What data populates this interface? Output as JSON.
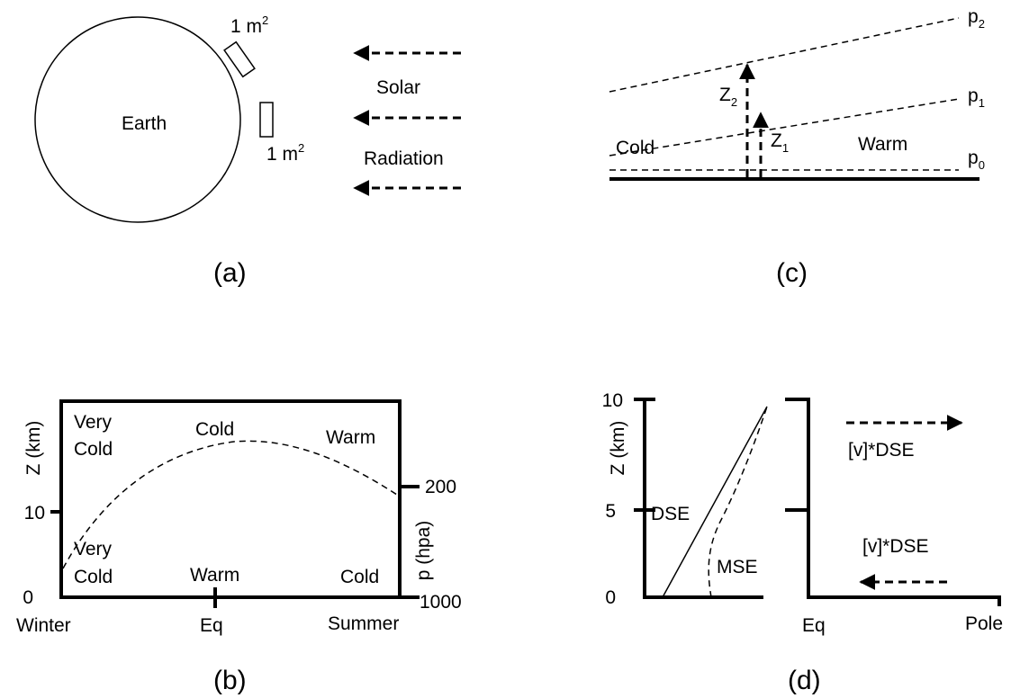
{
  "panel_a": {
    "caption": "(a)",
    "earth_label": "Earth",
    "area_label_top": "1 m",
    "area_label_top_exp": "2",
    "area_label_side": "1 m",
    "area_label_side_exp": "2",
    "solar_label": "Solar",
    "radiation_label": "Radiation"
  },
  "panel_b": {
    "caption": "(b)",
    "z_axis_label": "Z (km)",
    "p_axis_label": "p (hpa)",
    "z_ticks": [
      "0",
      "10"
    ],
    "p_ticks": [
      "200",
      "1000"
    ],
    "x_labels": [
      "Winter",
      "Eq",
      "Summer"
    ],
    "upper_left_1": "Very",
    "upper_left_2": "Cold",
    "upper_mid": "Cold",
    "upper_right": "Warm",
    "lower_left_1": "Very",
    "lower_left_2": "Cold",
    "lower_mid": "Warm",
    "lower_right": "Cold"
  },
  "panel_c": {
    "caption": "(c)",
    "p2": "p",
    "p2_sub": "2",
    "p1": "p",
    "p1_sub": "1",
    "p0": "p",
    "p0_sub": "0",
    "z2": "Z",
    "z2_sub": "2",
    "z1": "Z",
    "z1_sub": "1",
    "cold_label": "Cold",
    "warm_label": "Warm"
  },
  "panel_d": {
    "caption": "(d)",
    "z_axis_label": "Z (km)",
    "z_ticks": [
      "0",
      "5",
      "10"
    ],
    "dse_label": "DSE",
    "mse_label": "MSE",
    "flux_top": "[v]*DSE",
    "flux_bottom": "[v]*DSE",
    "x_left": "Eq",
    "x_right": "Pole"
  }
}
